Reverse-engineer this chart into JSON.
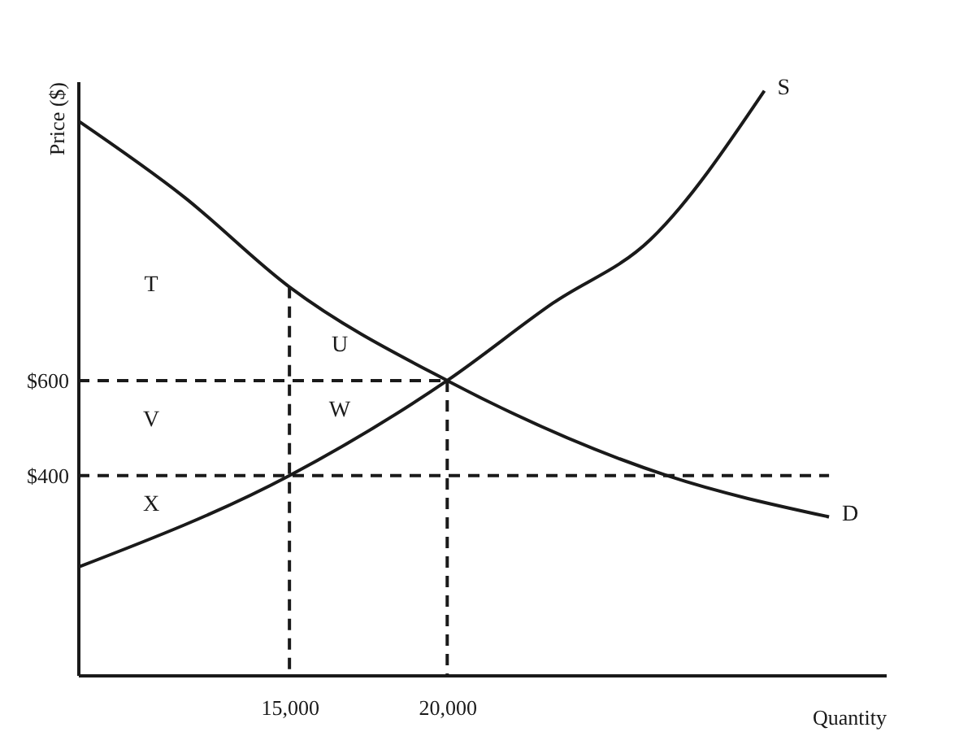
{
  "chart_data": {
    "type": "line",
    "xlabel": "Quantity",
    "ylabel": "Price ($)",
    "xlim": [
      8300,
      33900
    ],
    "ylim": [
      -20,
      1230
    ],
    "xticks": [
      {
        "value": 15000,
        "label": "15,000"
      },
      {
        "value": 20000,
        "label": "20,000"
      }
    ],
    "yticks": [
      {
        "value": 400,
        "label": "$400"
      },
      {
        "value": 600,
        "label": "$600"
      }
    ],
    "grid": false,
    "marker": "none",
    "series": [
      {
        "name": "D",
        "color": "#1a1a1a",
        "line_style": "solid",
        "x": [
          8300,
          11650,
          15000,
          20000,
          26960,
          32100
        ],
        "values": [
          1147,
          987,
          797,
          600,
          400,
          313
        ]
      },
      {
        "name": "S",
        "color": "#1a1a1a",
        "line_style": "solid",
        "x": [
          8300,
          15000,
          20000,
          23350,
          26440,
          30050
        ],
        "values": [
          207,
          400,
          600,
          763,
          897,
          1210
        ]
      },
      {
        "color": "#1a1a1a",
        "line_style": "dashed",
        "x": [
          8300,
          20000
        ],
        "values": [
          600,
          600
        ]
      },
      {
        "color": "#1a1a1a",
        "line_style": "dashed",
        "x": [
          8300,
          32100
        ],
        "values": [
          400,
          400
        ]
      },
      {
        "color": "#1a1a1a",
        "line_style": "dashed",
        "x": [
          15000,
          15000
        ],
        "values": [
          797,
          -20
        ]
      },
      {
        "color": "#1a1a1a",
        "line_style": "dashed",
        "x": [
          20000,
          20000
        ],
        "values": [
          600,
          -20
        ]
      }
    ],
    "annotations": [
      "T",
      "U",
      "V",
      "W",
      "X"
    ]
  }
}
